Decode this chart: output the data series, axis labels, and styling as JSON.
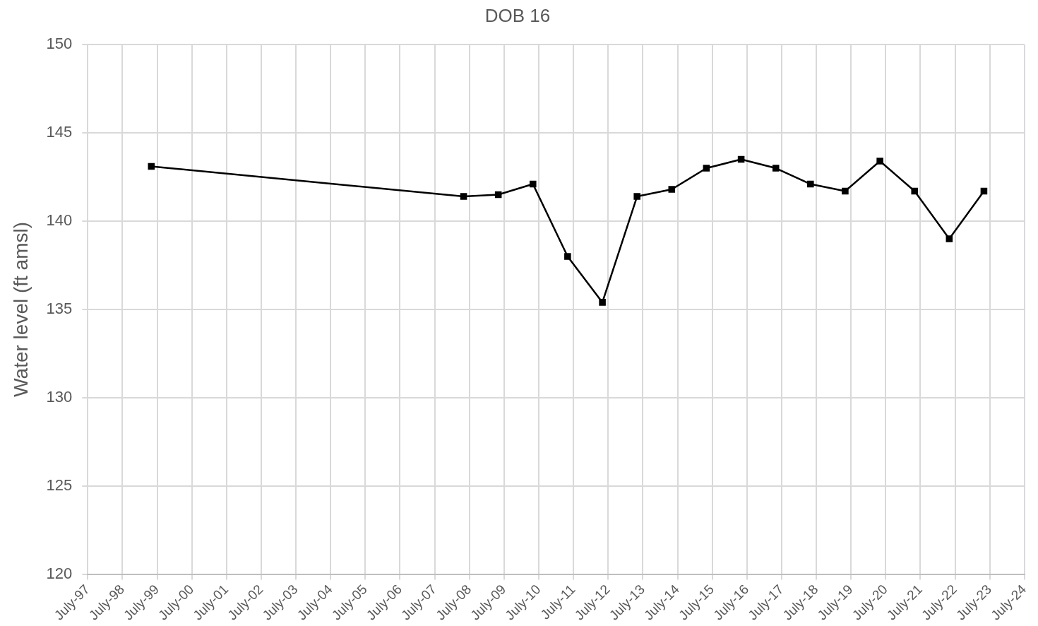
{
  "chart_data": {
    "type": "line",
    "title": "DOB 16",
    "ylabel": "Water level (ft amsl)",
    "x": [
      "1999-05",
      "2008-05",
      "2009-05",
      "2010-05",
      "2011-05",
      "2012-05",
      "2013-05",
      "2014-05",
      "2015-05",
      "2016-05",
      "2017-05",
      "2018-05",
      "2019-05",
      "2020-05",
      "2021-05",
      "2022-05",
      "2023-05"
    ],
    "series": [
      {
        "color": "#000000",
        "values": [
          143.1,
          141.4,
          141.5,
          142.1,
          138.0,
          135.4,
          141.4,
          141.8,
          143.0,
          143.5,
          143.0,
          142.1,
          141.7,
          143.4,
          141.7,
          139.0,
          141.7
        ]
      }
    ],
    "marker": "square",
    "line_style": "solid",
    "grid": true,
    "legend": false,
    "xlim": [
      "1997-07",
      "2024-07"
    ],
    "xticks": [
      {
        "value": "1997-07",
        "label": "July-97"
      },
      {
        "value": "1998-07",
        "label": "July-98"
      },
      {
        "value": "1999-07",
        "label": "July-99"
      },
      {
        "value": "2000-07",
        "label": "July-00"
      },
      {
        "value": "2001-07",
        "label": "July-01"
      },
      {
        "value": "2002-07",
        "label": "July-02"
      },
      {
        "value": "2003-07",
        "label": "July-03"
      },
      {
        "value": "2004-07",
        "label": "July-04"
      },
      {
        "value": "2005-07",
        "label": "July-05"
      },
      {
        "value": "2006-07",
        "label": "July-06"
      },
      {
        "value": "2007-07",
        "label": "July-07"
      },
      {
        "value": "2008-07",
        "label": "July-08"
      },
      {
        "value": "2009-07",
        "label": "July-09"
      },
      {
        "value": "2010-07",
        "label": "July-10"
      },
      {
        "value": "2011-07",
        "label": "July-11"
      },
      {
        "value": "2012-07",
        "label": "July-12"
      },
      {
        "value": "2013-07",
        "label": "July-13"
      },
      {
        "value": "2014-07",
        "label": "July-14"
      },
      {
        "value": "2015-07",
        "label": "July-15"
      },
      {
        "value": "2016-07",
        "label": "July-16"
      },
      {
        "value": "2017-07",
        "label": "July-17"
      },
      {
        "value": "2018-07",
        "label": "July-18"
      },
      {
        "value": "2019-07",
        "label": "July-19"
      },
      {
        "value": "2020-07",
        "label": "July-20"
      },
      {
        "value": "2021-07",
        "label": "July-21"
      },
      {
        "value": "2022-07",
        "label": "July-22"
      },
      {
        "value": "2023-07",
        "label": "July-23"
      },
      {
        "value": "2024-07",
        "label": "July-24"
      }
    ],
    "ylim": [
      120,
      150
    ],
    "yticks": [
      120,
      125,
      130,
      135,
      140,
      145,
      150
    ]
  }
}
